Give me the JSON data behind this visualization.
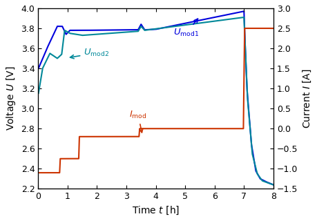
{
  "xlabel": "Time $t$ [h]",
  "ylabel_left": "Voltage $U$ [V]",
  "ylabel_right": "Current $I$ [A]",
  "xlim": [
    0,
    8
  ],
  "ylim_left": [
    2.2,
    4.0
  ],
  "ylim_right": [
    -1.5,
    3.0
  ],
  "xticks": [
    0,
    1,
    2,
    3,
    4,
    5,
    6,
    7,
    8
  ],
  "yticks_left": [
    2.2,
    2.4,
    2.6,
    2.8,
    3.0,
    3.2,
    3.4,
    3.6,
    3.8,
    4.0
  ],
  "yticks_right": [
    -1.5,
    -1.0,
    -0.5,
    0.0,
    0.5,
    1.0,
    1.5,
    2.0,
    2.5,
    3.0
  ],
  "color_blue": "#0000dd",
  "color_teal": "#008899",
  "color_orange": "#cc3300",
  "figsize": [
    4.6,
    3.2
  ],
  "dpi": 100
}
